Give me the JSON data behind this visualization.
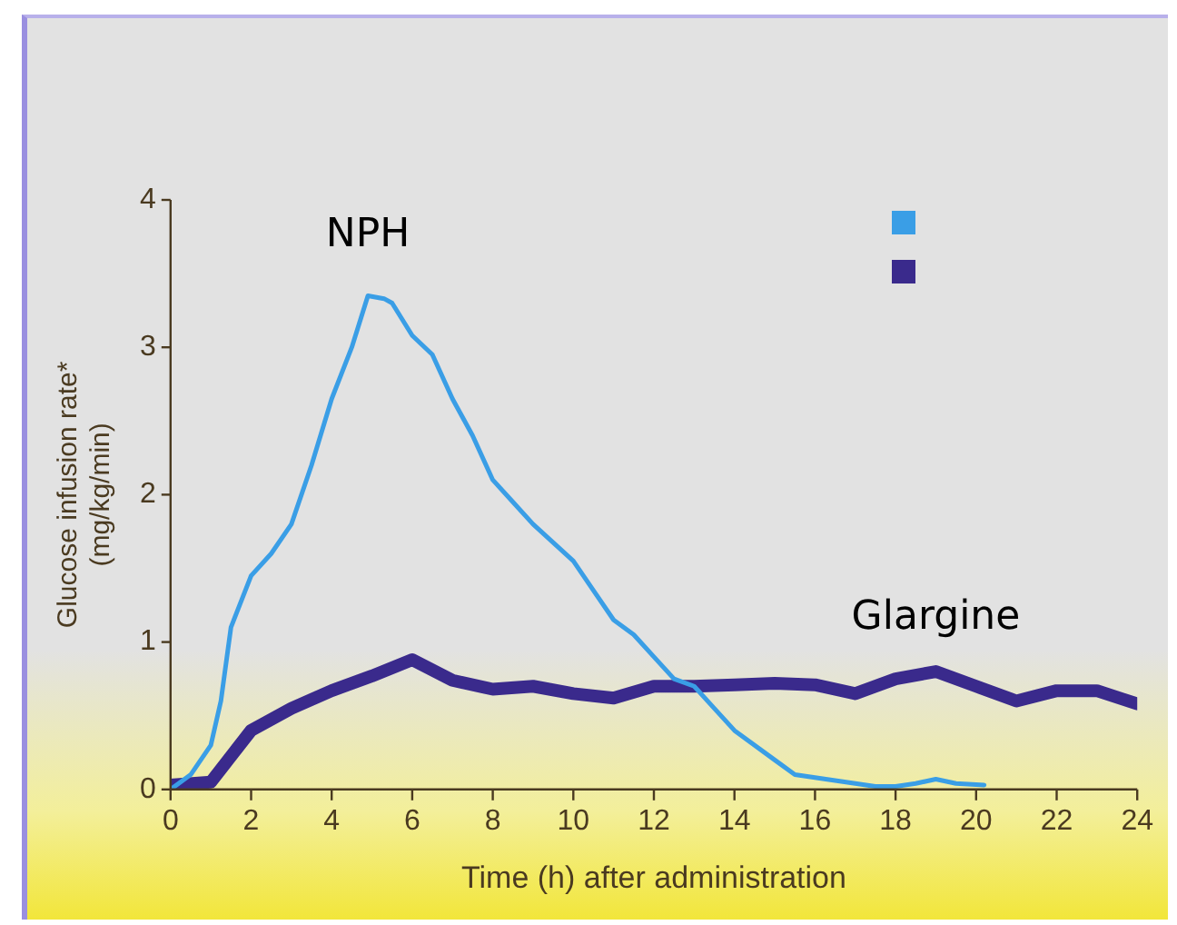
{
  "chart_data": {
    "type": "line",
    "xlabel": "Time (h) after administration",
    "ylabel": "Glucose infusion rate*\n(mg/kg/min)",
    "xlim": [
      0,
      24
    ],
    "xticks": [
      0,
      2,
      4,
      6,
      8,
      10,
      12,
      14,
      16,
      18,
      20,
      22,
      24
    ],
    "ylim": [
      0,
      4
    ],
    "yticks": [
      0,
      1,
      2,
      3,
      4
    ],
    "grid": false,
    "legend": "top right",
    "marker": "none",
    "line_style": "solid",
    "series": [
      {
        "name": "NPH",
        "color": "#3a9ee6",
        "x": [
          0,
          0.5,
          1,
          1.25,
          1.5,
          2,
          2.5,
          3,
          3.5,
          4,
          4.5,
          4.9,
          5.3,
          5.5,
          6,
          6.5,
          7,
          7.5,
          8,
          8.5,
          9,
          10,
          10.5,
          11,
          11.5,
          12,
          12.5,
          13,
          13.5,
          14,
          15,
          15.5,
          16,
          17,
          17.5,
          18,
          18.5,
          19,
          19.5,
          20.2
        ],
        "values": [
          0,
          0.1,
          0.3,
          0.6,
          1.1,
          1.45,
          1.6,
          1.8,
          2.2,
          2.65,
          3.0,
          3.35,
          3.33,
          3.3,
          3.08,
          2.95,
          2.65,
          2.4,
          2.1,
          1.95,
          1.8,
          1.55,
          1.35,
          1.15,
          1.05,
          0.9,
          0.75,
          0.7,
          0.55,
          0.4,
          0.2,
          0.1,
          0.08,
          0.04,
          0.02,
          0.02,
          0.04,
          0.07,
          0.04,
          0.03
        ]
      },
      {
        "name": "Glargine",
        "color": "#3a2a8c",
        "x": [
          0,
          1,
          2,
          3,
          4,
          5,
          6,
          7,
          8,
          9,
          10,
          11,
          12,
          13,
          14,
          15,
          16,
          17,
          18,
          19,
          20,
          21,
          22,
          23,
          24
        ],
        "values": [
          0.03,
          0.05,
          0.4,
          0.55,
          0.67,
          0.77,
          0.88,
          0.74,
          0.68,
          0.7,
          0.65,
          0.62,
          0.7,
          0.7,
          0.71,
          0.72,
          0.71,
          0.65,
          0.75,
          0.8,
          0.7,
          0.6,
          0.67,
          0.67,
          0.58
        ]
      }
    ]
  }
}
